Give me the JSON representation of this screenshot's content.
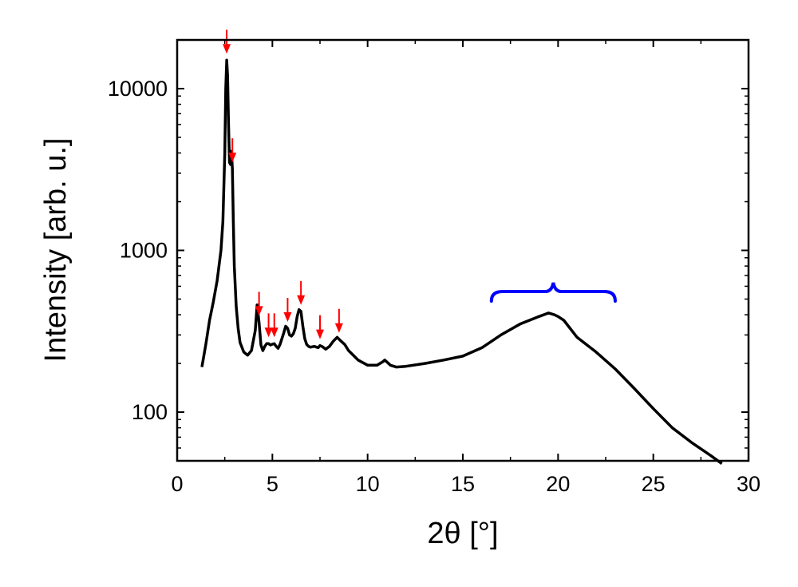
{
  "chart_data": {
    "type": "line",
    "title": "",
    "xlabel": "2θ [°]",
    "ylabel": "Intensity [arb. u.]",
    "xlim": [
      0,
      30
    ],
    "ylim": [
      50,
      20000
    ],
    "yscale": "log",
    "grid": false,
    "x_ticks": [
      0,
      5,
      10,
      15,
      20,
      25,
      30
    ],
    "x_tick_labels": [
      "0",
      "5",
      "10",
      "15",
      "20",
      "25",
      "30"
    ],
    "y_ticks": [
      100,
      1000,
      10000
    ],
    "y_tick_labels": [
      "100",
      "1000",
      "10000"
    ],
    "colors": {
      "line": "#000000",
      "peak_markers": "#ff0000",
      "amorphous_bracket": "#0000ff"
    },
    "series": [
      {
        "x": [
          1.3,
          1.5,
          1.7,
          1.9,
          2.1,
          2.3,
          2.4,
          2.5,
          2.55,
          2.6,
          2.65,
          2.7,
          2.75,
          2.8,
          2.85,
          2.9,
          2.95,
          3.0,
          3.1,
          3.2,
          3.3,
          3.5,
          3.7,
          3.9,
          4.1,
          4.2,
          4.3,
          4.4,
          4.5,
          4.6,
          4.7,
          4.8,
          4.9,
          5.0,
          5.1,
          5.2,
          5.3,
          5.4,
          5.5,
          5.6,
          5.7,
          5.8,
          5.9,
          6.0,
          6.1,
          6.2,
          6.3,
          6.4,
          6.5,
          6.6,
          6.7,
          6.8,
          6.9,
          7.0,
          7.2,
          7.4,
          7.5,
          7.6,
          7.8,
          8.0,
          8.2,
          8.4,
          8.6,
          8.8,
          9.0,
          9.5,
          10.0,
          10.5,
          10.8,
          10.9,
          11.0,
          11.2,
          11.5,
          12.0,
          13.0,
          14.0,
          15.0,
          16.0,
          17.0,
          18.0,
          19.0,
          19.5,
          19.8,
          20.0,
          20.3,
          21.0,
          22.0,
          23.0,
          24.0,
          25.0,
          26.0,
          27.0,
          28.0,
          28.6
        ],
        "y": [
          190,
          260,
          370,
          480,
          650,
          1000,
          1500,
          4000,
          10000,
          15000,
          12000,
          6000,
          3500,
          3400,
          4100,
          3200,
          1500,
          800,
          450,
          330,
          270,
          235,
          225,
          240,
          320,
          460,
          360,
          260,
          240,
          255,
          265,
          265,
          260,
          263,
          265,
          255,
          248,
          262,
          285,
          310,
          340,
          330,
          300,
          295,
          305,
          330,
          390,
          430,
          420,
          340,
          285,
          262,
          255,
          252,
          255,
          250,
          258,
          255,
          245,
          255,
          275,
          290,
          275,
          262,
          240,
          210,
          195,
          195,
          205,
          210,
          205,
          195,
          190,
          192,
          200,
          210,
          222,
          250,
          300,
          350,
          390,
          410,
          400,
          390,
          370,
          290,
          235,
          185,
          140,
          105,
          80,
          65,
          54,
          48
        ]
      }
    ],
    "peak_marker_x": [
      2.6,
      2.9,
      4.3,
      4.8,
      5.1,
      5.8,
      6.5,
      7.5,
      8.5
    ],
    "amorphous_bracket_range": [
      16.5,
      23.0
    ]
  }
}
